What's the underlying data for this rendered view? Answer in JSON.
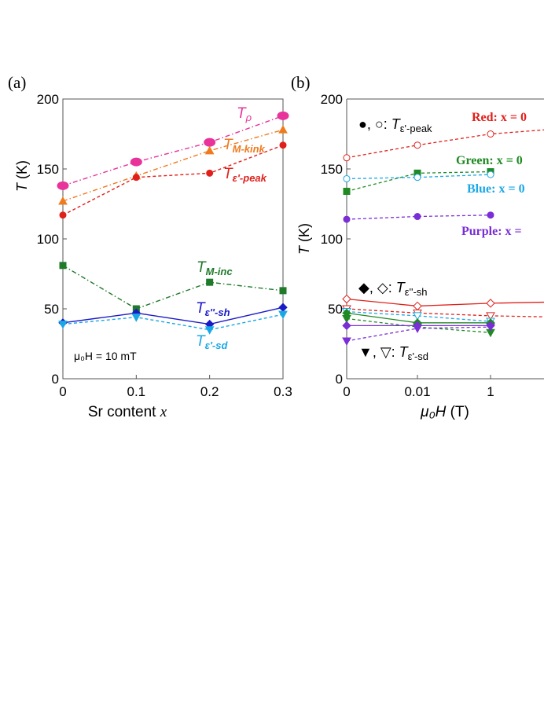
{
  "chart_data": [
    {
      "panel_label": "(a)",
      "type": "line",
      "xlabel_text": "Sr content ",
      "xlabel_var": "x",
      "ylabel_var": "T",
      "ylabel_unit": " (K)",
      "xlim": [
        0,
        0.3
      ],
      "ylim": [
        0,
        200
      ],
      "xticks": [
        "0",
        "0.1",
        "0.2",
        "0.3"
      ],
      "yticks": [
        "0",
        "50",
        "100",
        "150",
        "200"
      ],
      "annotation": "μ₀H = 10 mT",
      "x": [
        0,
        0.1,
        0.2,
        0.3
      ],
      "series": [
        {
          "name": "Tρ",
          "color": "#e8339b",
          "marker": "ellipse",
          "dash": "dashdot",
          "values": [
            138,
            155,
            169,
            188
          ]
        },
        {
          "name": "TM-kink",
          "color": "#f07a1e",
          "marker": "triangle-up",
          "dash": "dashdot",
          "values": [
            127,
            145,
            163,
            178
          ]
        },
        {
          "name": "Tε'-peak",
          "color": "#e0201b",
          "marker": "circle",
          "dash": "dash",
          "values": [
            117,
            144,
            147,
            167
          ]
        },
        {
          "name": "TM-inc",
          "color": "#1f7a2a",
          "marker": "square",
          "dash": "dashdot",
          "values": [
            81,
            50,
            69,
            63
          ]
        },
        {
          "name": "Tε''-sh",
          "color": "#1a1ac8",
          "marker": "diamond",
          "dash": "solid",
          "values": [
            40,
            47,
            39,
            51
          ]
        },
        {
          "name": "Tε'-sd",
          "color": "#1aa7e6",
          "marker": "triangle-down",
          "dash": "dash",
          "values": [
            39,
            44,
            35,
            46
          ]
        }
      ],
      "labels": {
        "t_rho": {
          "main": "T",
          "sub": "ρ"
        },
        "t_mkink": {
          "main": "T",
          "sub": "M-kink"
        },
        "t_peak": {
          "main": "T",
          "sub": "ε'-peak"
        },
        "t_minc": {
          "main": "T",
          "sub": "M-inc"
        },
        "t_sh": {
          "main": "T",
          "sub": "ε''-sh"
        },
        "t_sd": {
          "main": "T",
          "sub": "ε'-sd"
        }
      }
    },
    {
      "panel_label": "(b)",
      "type": "line",
      "xlabel_var": "μ₀H",
      "xlabel_unit": " (T)",
      "ylabel_var": "T",
      "ylabel_unit": " (K)",
      "ylim": [
        0,
        200
      ],
      "xticks": [
        "0",
        "0.01",
        "1"
      ],
      "yticks": [
        "0",
        "50",
        "100",
        "150",
        "200"
      ],
      "x_positions": [
        0,
        0.01,
        1
      ],
      "legend": {
        "peak": {
          "symbols": "●, ○: ",
          "main": "T",
          "sub": "ε'-peak"
        },
        "sh": {
          "symbols": "◆, ◇: ",
          "main": "T",
          "sub": "ε''-sh"
        },
        "sd": {
          "symbols": "▼, ▽: ",
          "main": "T",
          "sub": "ε'-sd"
        }
      },
      "group_labels": [
        {
          "text": "Red: x = 0",
          "color": "#e0201b"
        },
        {
          "text": "Green: x = 0",
          "color": "#1f8a23"
        },
        {
          "text": "Blue: x = 0",
          "color": "#1aa7e6"
        },
        {
          "text": "Purple: x = ",
          "color": "#7a2ed6"
        }
      ],
      "series": [
        {
          "group": "Red",
          "quantity": "peak",
          "color": "#e0201b",
          "marker": "circle-open",
          "dash": "dash",
          "values": [
            158,
            167,
            175
          ],
          "extends_right": true
        },
        {
          "group": "Green",
          "quantity": "peak",
          "color": "#1f8a23",
          "marker": "square",
          "dash": "dash",
          "values": [
            134,
            147,
            148
          ]
        },
        {
          "group": "Blue",
          "quantity": "peak",
          "color": "#1aa7e6",
          "marker": "circle-open",
          "dash": "dash",
          "values": [
            143,
            144,
            146
          ]
        },
        {
          "group": "Purple",
          "quantity": "peak",
          "color": "#7a2ed6",
          "marker": "circle",
          "dash": "dash",
          "values": [
            114,
            116,
            117
          ]
        },
        {
          "group": "Red",
          "quantity": "sh",
          "color": "#e0201b",
          "marker": "diamond-open",
          "dash": "solid",
          "values": [
            57,
            52,
            54
          ],
          "extends_right": true
        },
        {
          "group": "Red",
          "quantity": "sd",
          "color": "#e0201b",
          "marker": "triangle-down-open",
          "dash": "dash",
          "values": [
            50,
            47,
            45
          ],
          "extends_right": true
        },
        {
          "group": "Blue",
          "quantity": "sd",
          "color": "#1aa7e6",
          "marker": "triangle-down-open",
          "dash": "dash",
          "values": [
            48,
            45,
            41
          ]
        },
        {
          "group": "Green",
          "quantity": "sh",
          "color": "#1f8a23",
          "marker": "diamond",
          "dash": "solid",
          "values": [
            47,
            40,
            40
          ]
        },
        {
          "group": "Green",
          "quantity": "sd",
          "color": "#1f8a23",
          "marker": "triangle-down",
          "dash": "dash",
          "values": [
            43,
            37,
            33
          ]
        },
        {
          "group": "Purple",
          "quantity": "sh",
          "color": "#7a2ed6",
          "marker": "diamond",
          "dash": "solid",
          "values": [
            38,
            38,
            38
          ]
        },
        {
          "group": "Purple",
          "quantity": "sd",
          "color": "#7a2ed6",
          "marker": "triangle-down",
          "dash": "dash",
          "values": [
            27,
            36,
            37
          ]
        }
      ]
    }
  ]
}
